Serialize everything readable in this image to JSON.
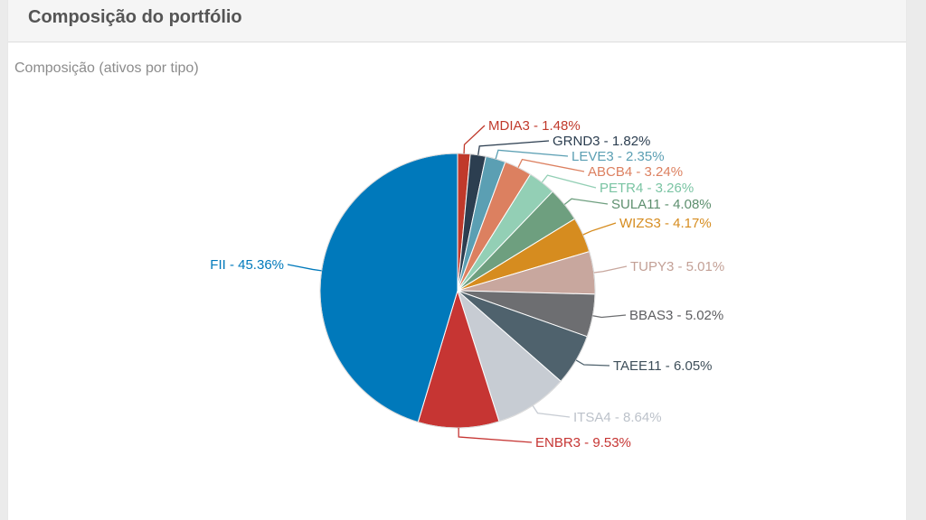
{
  "panel": {
    "title": "Composição do portfólio"
  },
  "chart_data": {
    "type": "pie",
    "title": "Composição (ativos por tipo)",
    "start_angle_deg": 0,
    "slices": [
      {
        "label": "MDIA3 - 1.48%",
        "name": "MDIA3",
        "value": 1.48,
        "color": "#c0392b",
        "label_color": "#c0392b"
      },
      {
        "label": "GRND3 - 1.82%",
        "name": "GRND3",
        "value": 1.82,
        "color": "#2c3e50",
        "label_color": "#2c3e50"
      },
      {
        "label": "LEVE3 - 2.35%",
        "name": "LEVE3",
        "value": 2.35,
        "color": "#5b9fb3",
        "label_color": "#5b9fb3"
      },
      {
        "label": "ABCB4 - 3.24%",
        "name": "ABCB4",
        "value": 3.24,
        "color": "#dc8060",
        "label_color": "#dc8060"
      },
      {
        "label": "PETR4 - 3.26%",
        "name": "PETR4",
        "value": 3.26,
        "color": "#93cfb5",
        "label_color": "#7ac4a3"
      },
      {
        "label": "SULA11 - 4.08%",
        "name": "SULA11",
        "value": 4.08,
        "color": "#6e9f7f",
        "label_color": "#5d8f6e"
      },
      {
        "label": "WIZS3 - 4.17%",
        "name": "WIZS3",
        "value": 4.17,
        "color": "#d68c1f",
        "label_color": "#d68c1f"
      },
      {
        "label": "TUPY3 - 5.01%",
        "name": "TUPY3",
        "value": 5.01,
        "color": "#c8a79e",
        "label_color": "#c3a096"
      },
      {
        "label": "BBAS3 - 5.02%",
        "name": "BBAS3",
        "value": 5.02,
        "color": "#6d6e71",
        "label_color": "#5d5e61"
      },
      {
        "label": "TAEE11 - 6.05%",
        "name": "TAEE11",
        "value": 6.05,
        "color": "#4f626d",
        "label_color": "#3e4f5a"
      },
      {
        "label": "ITSA4 - 8.64%",
        "name": "ITSA4",
        "value": 8.64,
        "color": "#c7ccd3",
        "label_color": "#bcc2ca"
      },
      {
        "label": "ENBR3 - 9.53%",
        "name": "ENBR3",
        "value": 9.53,
        "color": "#c63533",
        "label_color": "#c63533"
      },
      {
        "label": "FII - 45.36%",
        "name": "FII",
        "value": 45.36,
        "color": "#0079bb",
        "label_color": "#0079bb"
      }
    ]
  }
}
